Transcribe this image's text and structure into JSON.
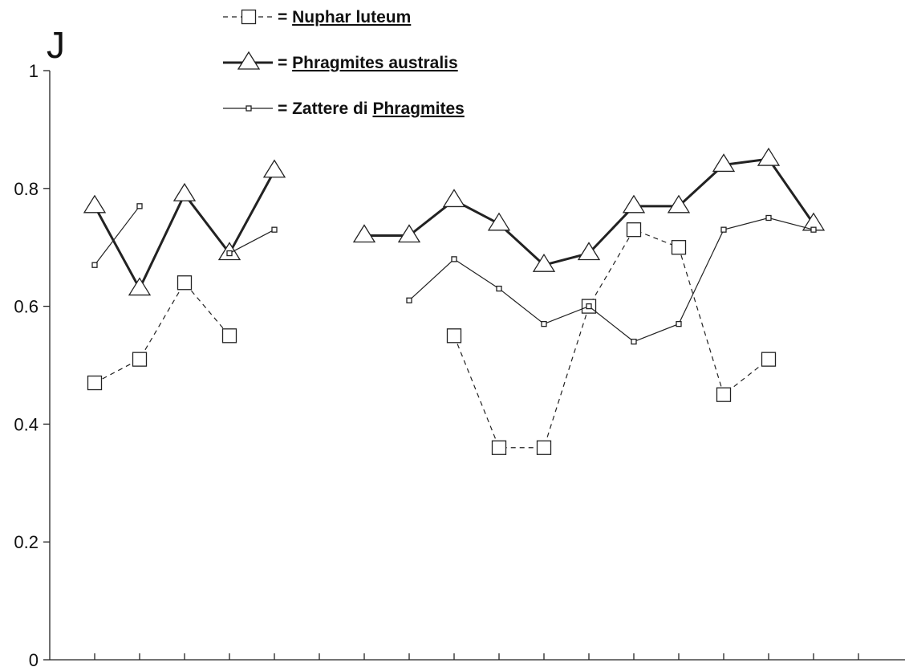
{
  "chart_data": {
    "type": "line",
    "ylabel": "J",
    "ylim": [
      0,
      1
    ],
    "yticks": [
      {
        "value": 0,
        "label": "0"
      },
      {
        "value": 0.2,
        "label": "0.2"
      },
      {
        "value": 0.4,
        "label": "0.4"
      },
      {
        "value": 0.6,
        "label": "0.6"
      },
      {
        "value": 0.8,
        "label": "0.8"
      },
      {
        "value": 1,
        "label": "1"
      }
    ],
    "x": [
      1,
      2,
      3,
      4,
      5,
      6,
      7,
      8,
      9,
      10,
      11,
      12,
      13,
      14,
      15,
      16,
      17,
      18
    ],
    "grid": false,
    "legend_position": "top",
    "series": [
      {
        "name": "Nuphar luteum",
        "prefix": "= ",
        "underlined": [
          "Nuphar luteum"
        ],
        "marker": "square",
        "line": "dashed",
        "stroke_width": 1.2,
        "values": [
          0.47,
          0.51,
          0.64,
          0.55,
          null,
          null,
          null,
          null,
          0.55,
          0.36,
          0.36,
          0.6,
          0.73,
          0.7,
          0.45,
          0.51,
          null,
          null
        ]
      },
      {
        "name": "Phragmites australis",
        "prefix": "= ",
        "underlined": [
          "Phragmites australis"
        ],
        "marker": "triangle",
        "line": "solid",
        "stroke_width": 3,
        "values": [
          0.77,
          0.63,
          0.79,
          0.69,
          0.83,
          null,
          0.72,
          0.72,
          0.78,
          0.74,
          0.67,
          0.69,
          0.77,
          0.77,
          0.84,
          0.85,
          0.74,
          null
        ]
      },
      {
        "name": "Zattere di Phragmites",
        "prefix": "= ",
        "underlined": [
          "Phragmites"
        ],
        "marker": "small-square",
        "line": "solid",
        "stroke_width": 1.2,
        "values": [
          0.67,
          0.77,
          null,
          0.69,
          0.73,
          null,
          null,
          0.61,
          0.68,
          0.63,
          0.57,
          0.6,
          0.54,
          0.57,
          0.73,
          0.75,
          0.73,
          null
        ]
      }
    ]
  }
}
